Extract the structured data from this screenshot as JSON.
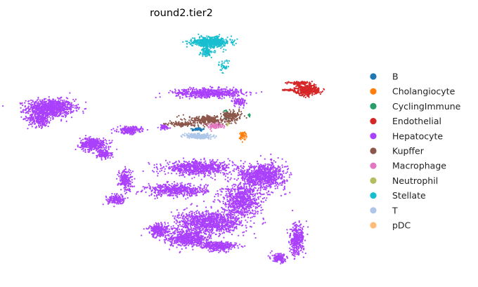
{
  "chart_data": {
    "type": "scatter",
    "title": "round2.tier2",
    "xlabel": "",
    "ylabel": "",
    "legend_position": "right",
    "axes_visible": false,
    "grid": false,
    "series": [
      {
        "name": "B",
        "color": "#1f77b4",
        "clusters": [
          [
            0.4,
            -0.23,
            0.12,
            0.03,
            50
          ]
        ]
      },
      {
        "name": "Cholangiocyte",
        "color": "#ff7f0e",
        "clusters": [
          [
            1.45,
            -0.38,
            0.08,
            0.1,
            60
          ]
        ]
      },
      {
        "name": "CyclingImmune",
        "color": "#279e68",
        "clusters": [
          [
            1.05,
            0.15,
            0.05,
            0.1,
            40
          ],
          [
            1.6,
            0.12,
            0.03,
            0.03,
            10
          ]
        ]
      },
      {
        "name": "Endothelial",
        "color": "#d62728",
        "clusters": [
          [
            2.95,
            0.75,
            0.25,
            0.12,
            400
          ],
          [
            2.75,
            0.93,
            0.2,
            0.03,
            90
          ],
          [
            2.5,
            0.75,
            0.15,
            0.02,
            40
          ]
        ]
      },
      {
        "name": "Hepatocyte",
        "color": "#aa40fc",
        "clusters": [
          [
            -3.05,
            0.3,
            0.5,
            0.2,
            900
          ],
          [
            -3.3,
            0.05,
            0.25,
            0.2,
            300
          ],
          [
            0.65,
            0.68,
            0.7,
            0.1,
            600
          ],
          [
            1.35,
            0.45,
            0.15,
            0.1,
            80
          ],
          [
            -2.05,
            -0.6,
            0.28,
            0.14,
            400
          ],
          [
            -1.8,
            -0.85,
            0.15,
            0.1,
            150
          ],
          [
            -1.2,
            -0.25,
            0.25,
            0.08,
            200
          ],
          [
            -0.4,
            -0.18,
            0.12,
            0.06,
            60
          ],
          [
            0.4,
            -1.2,
            0.7,
            0.15,
            700
          ],
          [
            -1.3,
            -1.5,
            0.15,
            0.25,
            200
          ],
          [
            -0.1,
            -1.75,
            0.65,
            0.14,
            500
          ],
          [
            1.9,
            -1.4,
            0.5,
            0.3,
            900
          ],
          [
            1.4,
            -2.0,
            0.4,
            0.35,
            700
          ],
          [
            0.7,
            -2.55,
            0.7,
            0.25,
            1000
          ],
          [
            0.2,
            -2.95,
            0.45,
            0.2,
            600
          ],
          [
            -0.5,
            -2.75,
            0.25,
            0.15,
            250
          ],
          [
            0.9,
            -3.15,
            0.35,
            0.1,
            350
          ],
          [
            2.7,
            -3.0,
            0.15,
            0.35,
            350
          ],
          [
            2.3,
            -3.45,
            0.15,
            0.1,
            150
          ],
          [
            -1.5,
            -2.0,
            0.2,
            0.1,
            150
          ]
        ]
      },
      {
        "name": "Kupffer",
        "color": "#8c564b",
        "clusters": [
          [
            0.65,
            0.0,
            0.45,
            0.1,
            300
          ],
          [
            1.2,
            0.1,
            0.2,
            0.12,
            150
          ],
          [
            0.0,
            -0.1,
            0.3,
            0.05,
            100
          ]
        ]
      },
      {
        "name": "Macrophage",
        "color": "#e377c2",
        "clusters": [
          [
            0.8,
            -0.15,
            0.15,
            0.06,
            80
          ]
        ]
      },
      {
        "name": "Neutrophil",
        "color": "#b5bd61",
        "clusters": [
          [
            1.1,
            -0.1,
            0.03,
            0.03,
            6
          ]
        ]
      },
      {
        "name": "Stellate",
        "color": "#17becf",
        "clusters": [
          [
            0.7,
            1.95,
            0.4,
            0.12,
            500
          ],
          [
            0.6,
            1.7,
            0.12,
            0.1,
            100
          ],
          [
            1.0,
            1.35,
            0.1,
            0.15,
            40
          ]
        ]
      },
      {
        "name": "T",
        "color": "#aec7e8",
        "clusters": [
          [
            0.4,
            -0.4,
            0.3,
            0.06,
            220
          ]
        ]
      },
      {
        "name": "pDC",
        "color": "#ffbb78",
        "clusters": [
          [
            1.5,
            -0.45,
            0.03,
            0.03,
            8
          ]
        ]
      }
    ],
    "xlim": [
      -3.9,
      3.9
    ],
    "ylim": [
      -3.75,
      2.3
    ]
  }
}
